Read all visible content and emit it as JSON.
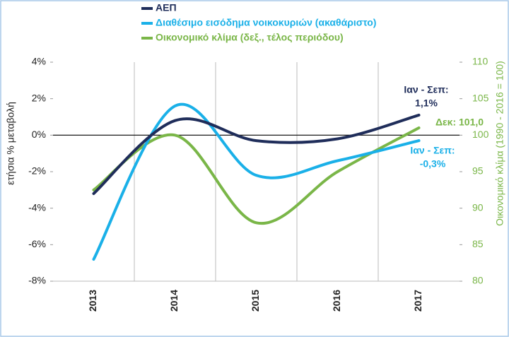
{
  "chart_data": {
    "type": "line",
    "legend": [],
    "categories": [
      "2013",
      "2014",
      "2015",
      "2016",
      "2017"
    ],
    "series": [
      {
        "name": "ΑΕΠ",
        "color": "#1f2d5a",
        "values": [
          -3.2,
          0.8,
          -0.3,
          -0.2,
          1.1
        ]
      },
      {
        "name": "Διαθέσιμο εισόδημα νοικοκυριών (ακαθάριστο)",
        "color": "#1ab0e8",
        "values": [
          -6.8,
          1.6,
          -2.2,
          -1.4,
          -0.3
        ]
      },
      {
        "name": "Οικονομικό κλίμα (δεξ., τέλος περιόδου)",
        "color": "#7ab648",
        "axis": "y2",
        "values": [
          92.5,
          100.0,
          88.0,
          95.0,
          101.0
        ]
      }
    ],
    "ylabel": "ετήσια % μεταβολή",
    "y2label": "Οικονομικό κλίμα (1990 - 2016 = 100)",
    "ylim": [
      -8,
      4
    ],
    "yticks": [
      {
        "value": -8,
        "label": "-8%"
      },
      {
        "value": -6,
        "label": "-6%"
      },
      {
        "value": -4,
        "label": "-4%"
      },
      {
        "value": -2,
        "label": "-2%"
      },
      {
        "value": 0,
        "label": "0%"
      },
      {
        "value": 2,
        "label": "2%"
      },
      {
        "value": 4,
        "label": "4%"
      }
    ],
    "y2lim": [
      80,
      110
    ],
    "y2ticks": [
      80,
      85,
      90,
      95,
      100,
      105,
      110
    ],
    "annotations": [
      {
        "lines": [
          "Ιαν - Σεπ:",
          "1,1%"
        ],
        "color": "#1f2d5a"
      },
      {
        "lines": [
          "Δεκ: 101,0"
        ],
        "color": "#7ab648"
      },
      {
        "lines": [
          "Ιαν - Σεπ:",
          "-0,3%"
        ],
        "color": "#1ab0e8"
      }
    ]
  }
}
